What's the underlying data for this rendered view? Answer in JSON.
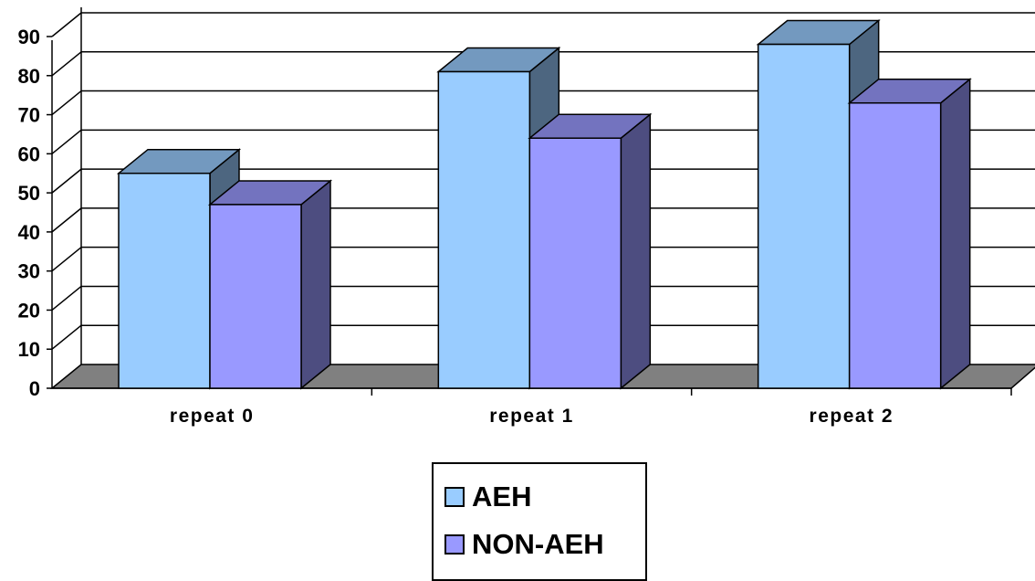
{
  "chart_data": {
    "type": "bar",
    "style": "3d-clustered-column",
    "categories": [
      "repeat 0",
      "repeat 1",
      "repeat 2"
    ],
    "series": [
      {
        "name": "AEH",
        "values": [
          55,
          81,
          88
        ],
        "color": "#99CCFF"
      },
      {
        "name": "NON-AEH",
        "values": [
          47,
          64,
          73
        ],
        "color": "#9999FF"
      }
    ],
    "title": "",
    "xlabel": "",
    "ylabel": "",
    "ylim": [
      0,
      90
    ],
    "yticks": [
      0,
      10,
      20,
      30,
      40,
      50,
      60,
      70,
      80,
      90
    ],
    "grid": true,
    "legend_position": "bottom",
    "colors": {
      "floor": "#808080",
      "gridline": "#000000"
    }
  }
}
